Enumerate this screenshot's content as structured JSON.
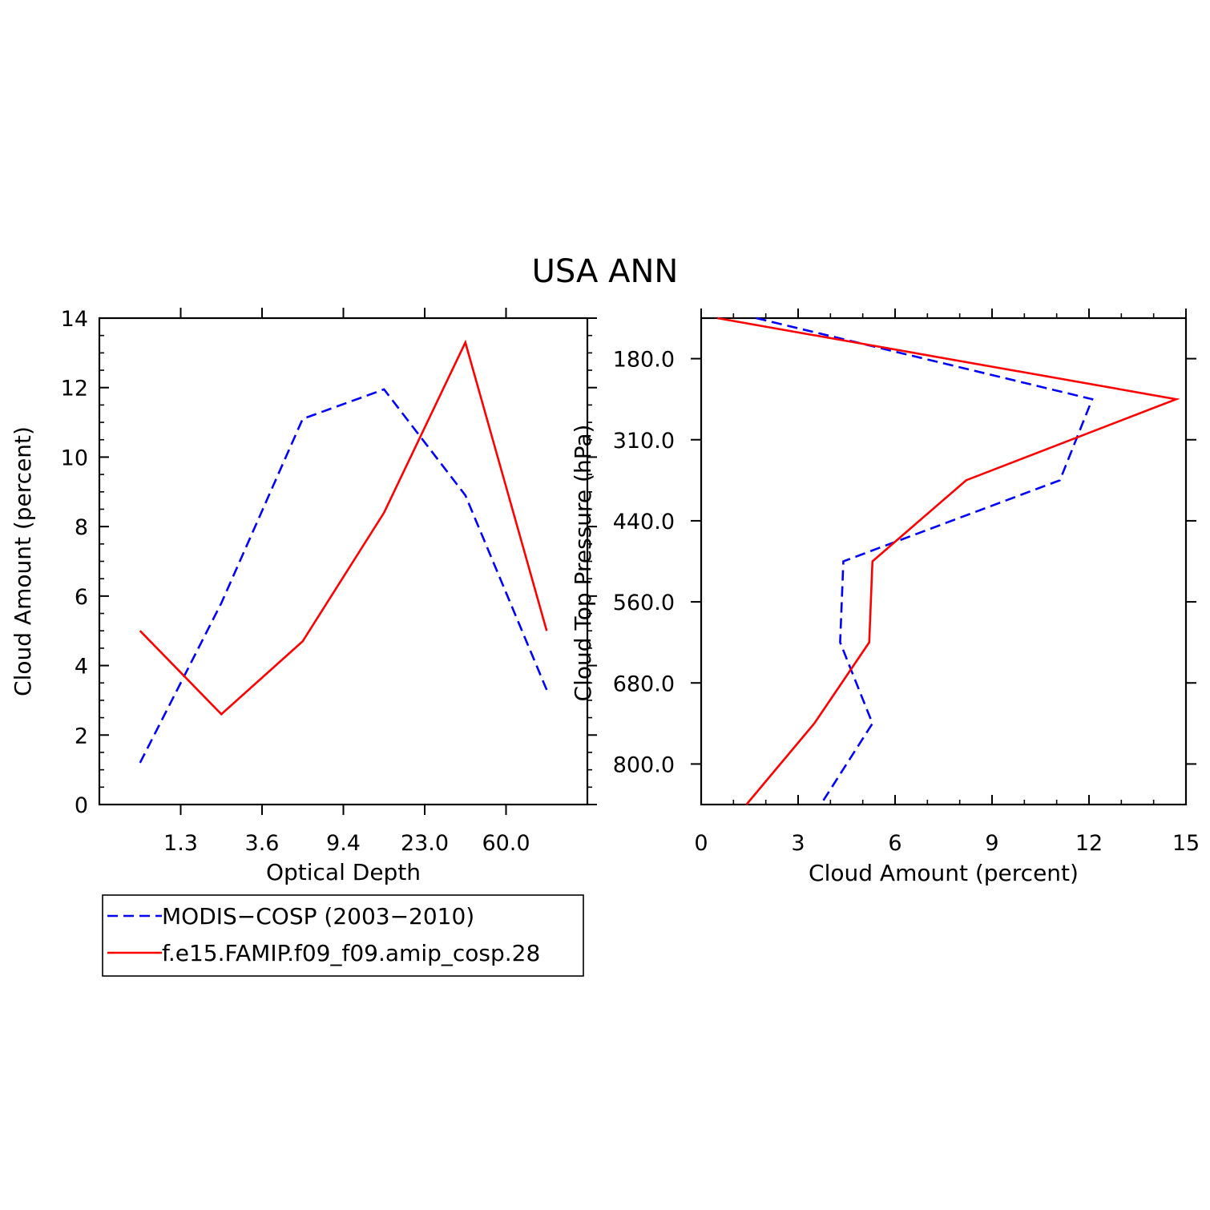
{
  "title": "USA ANN",
  "colors": {
    "obs": "#0000ff",
    "model": "#ff0000",
    "axis": "#000000"
  },
  "legend": {
    "entries": [
      {
        "label": "MODIS−COSP (2003−2010)",
        "color": "#0000ff",
        "dash": "dashed"
      },
      {
        "label": "f.e15.FAMIP.f09_f09.amip_cosp.28",
        "color": "#ff0000",
        "dash": "solid"
      }
    ]
  },
  "chart_data": [
    {
      "type": "line",
      "xlabel": "Optical Depth",
      "ylabel": "Cloud Amount (percent)",
      "ylim": [
        0,
        14
      ],
      "yticks": [
        "0",
        "2",
        "4",
        "6",
        "8",
        "10",
        "12",
        "14"
      ],
      "xticks": [
        "1.3",
        "3.6",
        "9.4",
        "23.0",
        "60.0"
      ],
      "grid": false,
      "series": [
        {
          "name": "MODIS−COSP (2003−2010)",
          "values": [
            1.2,
            5.8,
            11.1,
            11.95,
            8.9,
            3.3
          ]
        },
        {
          "name": "f.e15.FAMIP.f09_f09.amip_cosp.28",
          "values": [
            5.0,
            2.6,
            4.7,
            8.4,
            13.3,
            5.0
          ]
        }
      ]
    },
    {
      "type": "line",
      "xlabel": "Cloud Amount (percent)",
      "ylabel": "Cloud Top Pressure (hPa)",
      "xlim": [
        0,
        15
      ],
      "xticks": [
        "0",
        "3",
        "6",
        "9",
        "12",
        "15"
      ],
      "yticks": [
        "180.0",
        "310.0",
        "440.0",
        "560.0",
        "680.0",
        "800.0"
      ],
      "grid": false,
      "series": [
        {
          "name": "MODIS−COSP (2003−2010)",
          "values": [
            1.7,
            12.1,
            11.1,
            4.4,
            4.3,
            5.3,
            3.7
          ]
        },
        {
          "name": "f.e15.FAMIP.f09_f09.amip_cosp.28",
          "values": [
            0.5,
            14.7,
            8.2,
            5.3,
            5.2,
            3.5,
            1.4
          ]
        }
      ]
    }
  ]
}
